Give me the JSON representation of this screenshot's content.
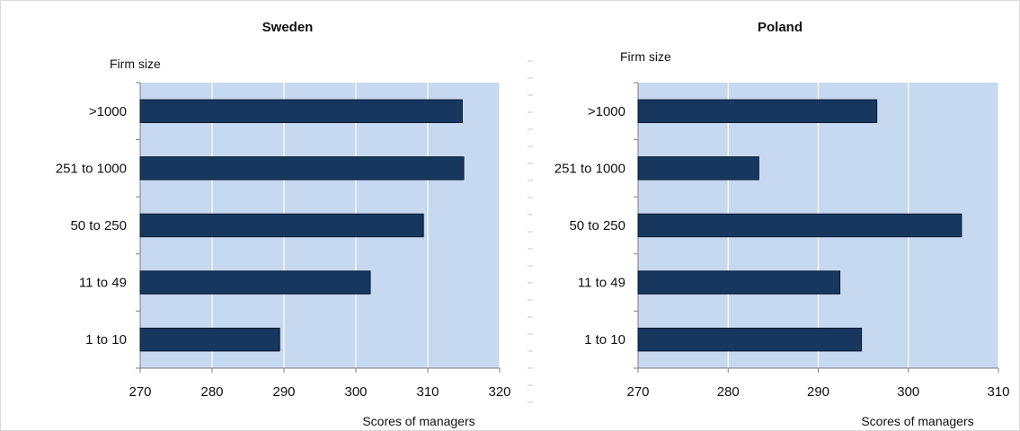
{
  "colors": {
    "plot_background": "#c6d9f1",
    "bar_fill": "#17375e",
    "bar_stroke": "#0a1a30",
    "gridline": "#ffffff",
    "axis": "#7f7f7f",
    "frame": "#d9d9d9"
  },
  "chart_data": [
    {
      "type": "bar",
      "orientation": "horizontal",
      "title": "Sweden",
      "ylabel": "Firm size",
      "xlabel": "Scores of managers",
      "categories": [
        ">1000",
        "251 to 1000",
        "50 to 250",
        "11 to 49",
        "1 to 10"
      ],
      "values": [
        314.8,
        315.0,
        309.4,
        302.0,
        289.4
      ],
      "xlim": [
        270,
        320
      ],
      "xticks": [
        270,
        280,
        290,
        300,
        310,
        320
      ],
      "grid": true
    },
    {
      "type": "bar",
      "orientation": "horizontal",
      "title": "Poland",
      "ylabel": "Firm size",
      "xlabel": "Scores of managers",
      "categories": [
        ">1000",
        "251 to 1000",
        "50 to 250",
        "11 to 49",
        "1 to 10"
      ],
      "values": [
        296.5,
        283.4,
        305.9,
        292.4,
        294.8
      ],
      "xlim": [
        270,
        310
      ],
      "xticks": [
        270,
        280,
        290,
        300,
        310
      ],
      "grid": true
    }
  ]
}
